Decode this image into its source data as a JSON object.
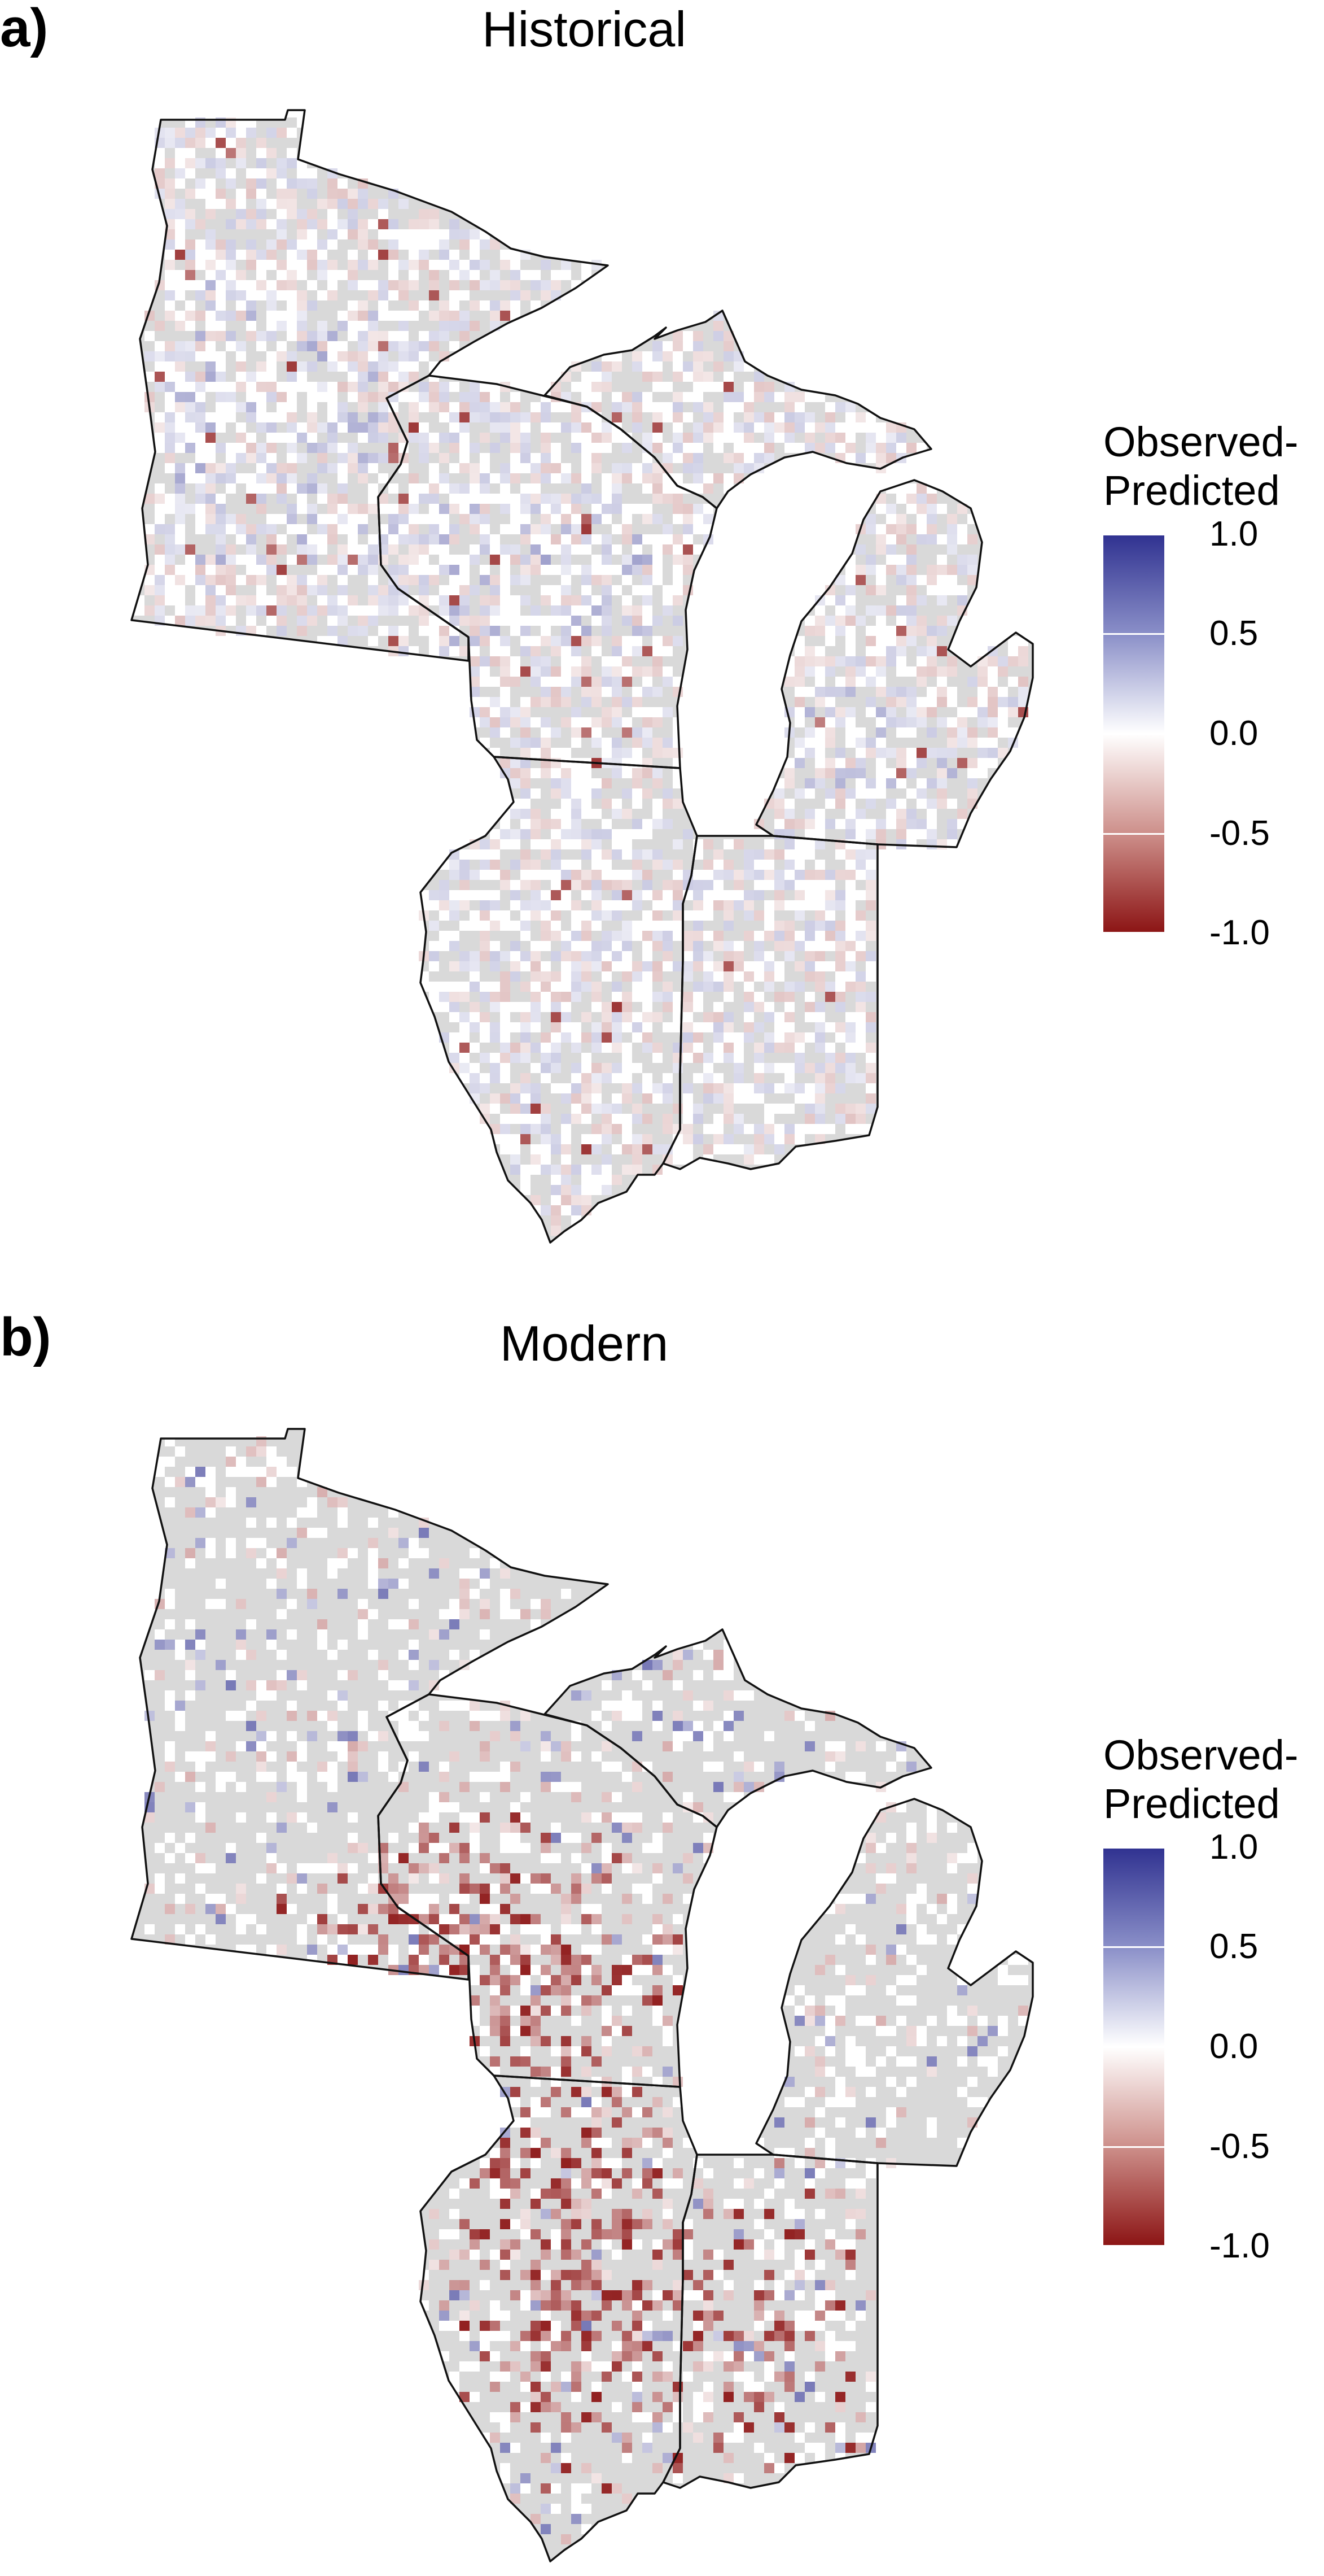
{
  "colors": {
    "land": "#d9d9d9",
    "border": "#111111",
    "positive": "#2f3190",
    "negative": "#8b1313",
    "neutral": "#ffffff"
  },
  "legend_title_line1": "Observed-",
  "legend_title_line2": "Predicted",
  "legend_scale": {
    "min": -1.0,
    "max": 1.0
  },
  "legend_ticks": [
    "1.0",
    "0.5",
    "0.0",
    "-0.5",
    "-1.0"
  ],
  "panels": [
    {
      "letter": "a)",
      "title": "Historical",
      "residual_pattern": "mostly near zero with scattered light blue cells in western Minnesota and central Wisconsin and a few light red cells"
    },
    {
      "letter": "b)",
      "title": "Modern",
      "residual_pattern": "strong negative (red) residuals concentrated in southern Minnesota, southern Wisconsin and northern Illinois; scattered light red across Indiana and Michigan; near zero in the north"
    }
  ]
}
